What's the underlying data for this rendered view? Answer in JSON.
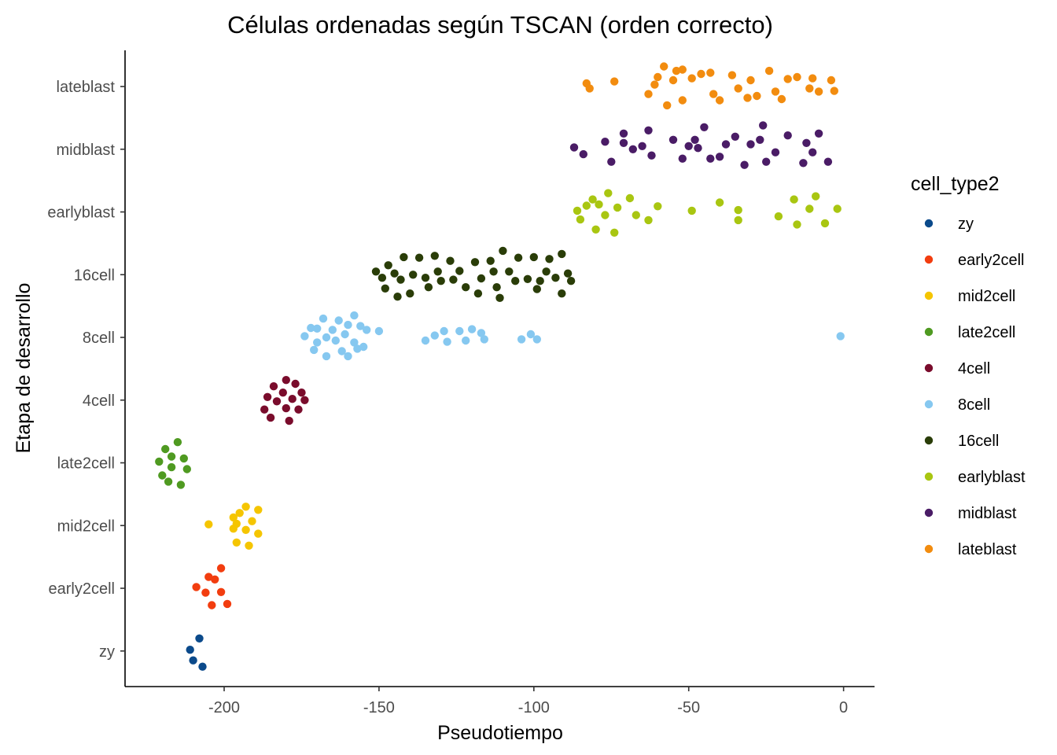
{
  "chart_data": {
    "type": "scatter",
    "title": "Células ordenadas según TSCAN (orden correcto)",
    "xlabel": "Pseudotiempo",
    "ylabel": "Etapa de desarrollo",
    "xlim": [
      -232,
      10
    ],
    "x_ticks": [
      -200,
      -150,
      -100,
      -50,
      0
    ],
    "x_tick_labels": [
      "-200",
      "-150",
      "-100",
      "-50",
      "0"
    ],
    "categories": [
      "zy",
      "early2cell",
      "mid2cell",
      "late2cell",
      "4cell",
      "8cell",
      "16cell",
      "earlyblast",
      "midblast",
      "lateblast"
    ],
    "grid": false,
    "legend": {
      "title": "cell_type2",
      "position": "right"
    },
    "series": [
      {
        "name": "zy",
        "color": "#0b4a8b",
        "points": [
          [
            -208,
            0.2
          ],
          [
            -211,
            0.02
          ],
          [
            -210,
            -0.15
          ],
          [
            -207,
            -0.25
          ]
        ]
      },
      {
        "name": "early2cell",
        "color": "#f23d0f",
        "points": [
          [
            -201,
            0.32
          ],
          [
            -205,
            0.18
          ],
          [
            -203,
            0.14
          ],
          [
            -209,
            0.02
          ],
          [
            -206,
            -0.07
          ],
          [
            -201,
            -0.06
          ],
          [
            -204,
            -0.27
          ],
          [
            -199,
            -0.25
          ]
        ]
      },
      {
        "name": "mid2cell",
        "color": "#f5c500",
        "points": [
          [
            -193,
            0.3
          ],
          [
            -189,
            0.25
          ],
          [
            -195,
            0.2
          ],
          [
            -191,
            0.07
          ],
          [
            -196,
            0.03
          ],
          [
            -205,
            0.02
          ],
          [
            -197,
            0.13
          ],
          [
            -189,
            -0.13
          ],
          [
            -193,
            -0.07
          ],
          [
            -197,
            -0.05
          ],
          [
            -196,
            -0.27
          ],
          [
            -192,
            -0.32
          ]
        ]
      },
      {
        "name": "late2cell",
        "color": "#4f9a21",
        "points": [
          [
            -215,
            0.33
          ],
          [
            -219,
            0.22
          ],
          [
            -217,
            0.1
          ],
          [
            -213,
            0.07
          ],
          [
            -221,
            0.02
          ],
          [
            -217,
            -0.07
          ],
          [
            -212,
            -0.1
          ],
          [
            -220,
            -0.2
          ],
          [
            -218,
            -0.3
          ],
          [
            -214,
            -0.35
          ]
        ]
      },
      {
        "name": "4cell",
        "color": "#7a0c2c",
        "points": [
          [
            -180,
            0.32
          ],
          [
            -184,
            0.22
          ],
          [
            -177,
            0.26
          ],
          [
            -181,
            0.12
          ],
          [
            -175,
            0.12
          ],
          [
            -186,
            0.05
          ],
          [
            -178,
            0.02
          ],
          [
            -174,
            0.0
          ],
          [
            -183,
            -0.02
          ],
          [
            -187,
            -0.15
          ],
          [
            -180,
            -0.13
          ],
          [
            -176,
            -0.15
          ],
          [
            -185,
            -0.28
          ],
          [
            -179,
            -0.33
          ]
        ]
      },
      {
        "name": "8cell",
        "color": "#86c8f0",
        "points": [
          [
            -158,
            0.35
          ],
          [
            -168,
            0.3
          ],
          [
            -163,
            0.27
          ],
          [
            -160,
            0.2
          ],
          [
            -172,
            0.15
          ],
          [
            -170,
            0.14
          ],
          [
            -165,
            0.12
          ],
          [
            -156,
            0.18
          ],
          [
            -154,
            0.12
          ],
          [
            -161,
            0.05
          ],
          [
            -167,
            0.0
          ],
          [
            -174,
            0.02
          ],
          [
            -164,
            -0.05
          ],
          [
            -158,
            -0.08
          ],
          [
            -170,
            -0.08
          ],
          [
            -171,
            -0.2
          ],
          [
            -162,
            -0.22
          ],
          [
            -167,
            -0.3
          ],
          [
            -160,
            -0.3
          ],
          [
            -155,
            -0.15
          ],
          [
            -157,
            -0.18
          ],
          [
            -150,
            0.1
          ],
          [
            -132,
            0.03
          ],
          [
            -129,
            0.1
          ],
          [
            -124,
            0.1
          ],
          [
            -120,
            0.13
          ],
          [
            -117,
            0.07
          ],
          [
            -101,
            0.05
          ],
          [
            -135,
            -0.05
          ],
          [
            -128,
            -0.07
          ],
          [
            -122,
            -0.05
          ],
          [
            -116,
            -0.03
          ],
          [
            -104,
            -0.03
          ],
          [
            -99,
            -0.03
          ],
          [
            -1,
            0.02
          ]
        ]
      },
      {
        "name": "16cell",
        "color": "#2a3d08",
        "points": [
          [
            -147,
            0.15
          ],
          [
            -142,
            0.28
          ],
          [
            -137,
            0.27
          ],
          [
            -132,
            0.3
          ],
          [
            -127,
            0.22
          ],
          [
            -119,
            0.2
          ],
          [
            -114,
            0.22
          ],
          [
            -110,
            0.38
          ],
          [
            -105,
            0.27
          ],
          [
            -100,
            0.28
          ],
          [
            -95,
            0.25
          ],
          [
            -91,
            0.33
          ],
          [
            -151,
            0.05
          ],
          [
            -145,
            0.02
          ],
          [
            -139,
            0.0
          ],
          [
            -131,
            0.05
          ],
          [
            -124,
            0.06
          ],
          [
            -113,
            0.05
          ],
          [
            -108,
            0.05
          ],
          [
            -96,
            0.05
          ],
          [
            -89,
            0.02
          ],
          [
            -149,
            -0.05
          ],
          [
            -143,
            -0.08
          ],
          [
            -135,
            -0.05
          ],
          [
            -126,
            -0.08
          ],
          [
            -117,
            -0.06
          ],
          [
            -102,
            -0.07
          ],
          [
            -93,
            -0.05
          ],
          [
            -148,
            -0.22
          ],
          [
            -140,
            -0.3
          ],
          [
            -134,
            -0.2
          ],
          [
            -122,
            -0.2
          ],
          [
            -112,
            -0.2
          ],
          [
            -99,
            -0.23
          ],
          [
            -91,
            -0.3
          ],
          [
            -111,
            -0.37
          ],
          [
            -144,
            -0.35
          ],
          [
            -130,
            -0.1
          ],
          [
            -118,
            -0.3
          ],
          [
            -106,
            -0.1
          ],
          [
            -98,
            -0.1
          ],
          [
            -88,
            -0.1
          ]
        ]
      },
      {
        "name": "earlyblast",
        "color": "#a9c611",
        "points": [
          [
            -81,
            0.2
          ],
          [
            -76,
            0.3
          ],
          [
            -69,
            0.22
          ],
          [
            -60,
            0.09
          ],
          [
            -73,
            0.07
          ],
          [
            -79,
            0.12
          ],
          [
            -86,
            0.02
          ],
          [
            -83,
            0.1
          ],
          [
            -77,
            -0.05
          ],
          [
            -67,
            -0.05
          ],
          [
            -63,
            -0.13
          ],
          [
            -49,
            0.02
          ],
          [
            -40,
            0.15
          ],
          [
            -34,
            0.03
          ],
          [
            -16,
            0.2
          ],
          [
            -11,
            0.05
          ],
          [
            -9,
            0.25
          ],
          [
            -2,
            0.05
          ],
          [
            -21,
            -0.07
          ],
          [
            -34,
            -0.13
          ],
          [
            -85,
            -0.12
          ],
          [
            -80,
            -0.28
          ],
          [
            -74,
            -0.33
          ],
          [
            -15,
            -0.2
          ],
          [
            -6,
            -0.18
          ]
        ]
      },
      {
        "name": "midblast",
        "color": "#4a1c66",
        "points": [
          [
            -87,
            0.03
          ],
          [
            -84,
            -0.08
          ],
          [
            -77,
            0.12
          ],
          [
            -71,
            0.25
          ],
          [
            -71,
            0.1
          ],
          [
            -68,
            0.0
          ],
          [
            -65,
            0.05
          ],
          [
            -62,
            -0.1
          ],
          [
            -55,
            0.15
          ],
          [
            -50,
            0.05
          ],
          [
            -45,
            0.35
          ],
          [
            -43,
            -0.15
          ],
          [
            -38,
            0.08
          ],
          [
            -35,
            0.2
          ],
          [
            -27,
            0.15
          ],
          [
            -22,
            -0.05
          ],
          [
            -18,
            0.22
          ],
          [
            -12,
            0.1
          ],
          [
            -8,
            0.25
          ],
          [
            -10,
            -0.05
          ],
          [
            -13,
            -0.22
          ],
          [
            -30,
            0.08
          ],
          [
            -40,
            -0.12
          ],
          [
            -48,
            0.15
          ],
          [
            -52,
            -0.15
          ],
          [
            -75,
            -0.2
          ],
          [
            -63,
            0.3
          ],
          [
            -25,
            -0.2
          ],
          [
            -32,
            -0.25
          ],
          [
            -26,
            0.38
          ],
          [
            -47,
            0.02
          ],
          [
            -5,
            -0.2
          ]
        ]
      },
      {
        "name": "lateblast",
        "color": "#f28c0f",
        "points": [
          [
            -83,
            0.05
          ],
          [
            -74,
            0.08
          ],
          [
            -60,
            0.15
          ],
          [
            -55,
            0.1
          ],
          [
            -58,
            0.32
          ],
          [
            -54,
            0.25
          ],
          [
            -49,
            0.13
          ],
          [
            -43,
            0.22
          ],
          [
            -36,
            0.18
          ],
          [
            -30,
            0.1
          ],
          [
            -24,
            0.25
          ],
          [
            -18,
            0.12
          ],
          [
            -10,
            0.13
          ],
          [
            -4,
            0.1
          ],
          [
            -63,
            -0.12
          ],
          [
            -57,
            -0.3
          ],
          [
            -52,
            -0.22
          ],
          [
            -42,
            -0.12
          ],
          [
            -40,
            -0.22
          ],
          [
            -31,
            -0.18
          ],
          [
            -22,
            -0.08
          ],
          [
            -20,
            -0.2
          ],
          [
            -11,
            -0.03
          ],
          [
            -3,
            -0.07
          ],
          [
            -82,
            -0.03
          ],
          [
            -61,
            0.03
          ],
          [
            -46,
            0.2
          ],
          [
            -34,
            -0.03
          ],
          [
            -52,
            0.27
          ],
          [
            -15,
            0.15
          ],
          [
            -28,
            -0.15
          ],
          [
            -8,
            -0.08
          ]
        ]
      }
    ]
  }
}
